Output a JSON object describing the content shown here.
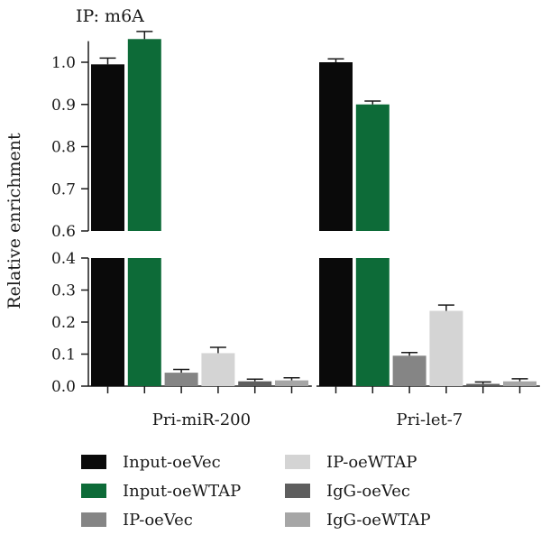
{
  "chart_data": {
    "type": "bar",
    "title": "IP: m6A",
    "ylabel": "Relative enrichment",
    "xlabel": "",
    "broken_axis": {
      "lower_range": [
        0.0,
        0.4
      ],
      "upper_range": [
        0.6,
        1.05
      ],
      "lower_ticks": [
        "0.0",
        "0.1",
        "0.2",
        "0.3",
        "0.4"
      ],
      "upper_ticks": [
        "0.6",
        "0.7",
        "0.8",
        "0.9",
        "1.0"
      ]
    },
    "categories": [
      "Pri-miR-200",
      "Pri-let-7"
    ],
    "series": [
      {
        "name": "Input-oeVec",
        "color": "#0a0a0a",
        "values": [
          0.995,
          1.0
        ],
        "errors": [
          0.015,
          0.008
        ]
      },
      {
        "name": "Input-oeWTAP",
        "color": "#0d6b38",
        "values": [
          1.055,
          0.9
        ],
        "errors": [
          0.018,
          0.008
        ]
      },
      {
        "name": "IP-oeVec",
        "color": "#858585",
        "values": [
          0.042,
          0.095
        ],
        "errors": [
          0.01,
          0.01
        ]
      },
      {
        "name": "IP-oeWTAP",
        "color": "#d4d4d4",
        "values": [
          0.103,
          0.235
        ],
        "errors": [
          0.018,
          0.018
        ]
      },
      {
        "name": "IgG-oeVec",
        "color": "#5e5e5e",
        "values": [
          0.015,
          0.007
        ],
        "errors": [
          0.007,
          0.006
        ]
      },
      {
        "name": "IgG-oeWTAP",
        "color": "#a6a6a6",
        "values": [
          0.018,
          0.015
        ],
        "errors": [
          0.008,
          0.008
        ]
      }
    ],
    "grid": false,
    "legend_position": "bottom"
  }
}
